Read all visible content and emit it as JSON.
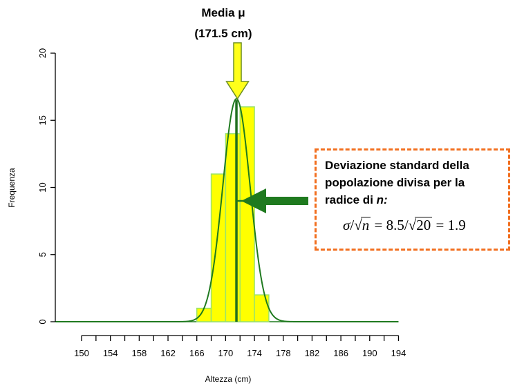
{
  "chart_data": {
    "type": "bar",
    "xlabel": "Altezza (cm)",
    "ylabel": "Frequenza",
    "xlim": [
      148,
      196
    ],
    "ylim": [
      0,
      20
    ],
    "x_ticks": [
      150,
      152,
      154,
      156,
      158,
      160,
      162,
      164,
      166,
      168,
      170,
      172,
      174,
      176,
      178,
      180,
      182,
      184,
      186,
      188,
      190,
      192,
      194
    ],
    "x_tick_labels": [
      {
        "value": 150,
        "label": "150"
      },
      {
        "value": 154,
        "label": "154"
      },
      {
        "value": 158,
        "label": "158"
      },
      {
        "value": 162,
        "label": "162"
      },
      {
        "value": 166,
        "label": "166"
      },
      {
        "value": 170,
        "label": "170"
      },
      {
        "value": 174,
        "label": "174"
      },
      {
        "value": 178,
        "label": "178"
      },
      {
        "value": 182,
        "label": "182"
      },
      {
        "value": 186,
        "label": "186"
      },
      {
        "value": 190,
        "label": "190"
      },
      {
        "value": 194,
        "label": "194"
      }
    ],
    "y_ticks": [
      {
        "value": 0,
        "label": "0"
      },
      {
        "value": 5,
        "label": "5"
      },
      {
        "value": 10,
        "label": "10"
      },
      {
        "value": 15,
        "label": "15"
      },
      {
        "value": 20,
        "label": "20"
      }
    ],
    "bins": [
      {
        "x0": 166,
        "x1": 168,
        "count": 1
      },
      {
        "x0": 168,
        "x1": 170,
        "count": 11
      },
      {
        "x0": 170,
        "x1": 172,
        "count": 14
      },
      {
        "x0": 172,
        "x1": 174,
        "count": 16
      },
      {
        "x0": 174,
        "x1": 176,
        "count": 2
      }
    ],
    "curve": {
      "type": "normal",
      "mean": 171.5,
      "sd": 1.9,
      "peak": 16.6
    },
    "mean_line": 171.5,
    "sd_marker": {
      "from": 171.5,
      "to": 173.4,
      "y": 9
    },
    "annotations": {
      "mean_title": "Media μ",
      "mean_value": "(171.5 cm)",
      "note_lines": [
        "Deviazione standard della",
        "popolazione divisa per la"
      ],
      "note_line3_prefix": "radice di ",
      "note_line3_var": "n:",
      "formula": {
        "sigma": "σ",
        "slash": "/",
        "radic": "√",
        "n": "n",
        "eq1": " = 8.5",
        "n2": "20",
        "eq2": " = 1.9"
      }
    },
    "colors": {
      "bar_fill": "#ffff00",
      "bar_stroke": "#9be36a",
      "curve": "#1f7a1f",
      "mean_line": "#1f6f1f",
      "mean_arrow_fill": "#ffff1a",
      "mean_arrow_stroke": "#6b8e23",
      "sd_arrow": "#1f7a1f",
      "note_border": "#f26f1f"
    }
  }
}
